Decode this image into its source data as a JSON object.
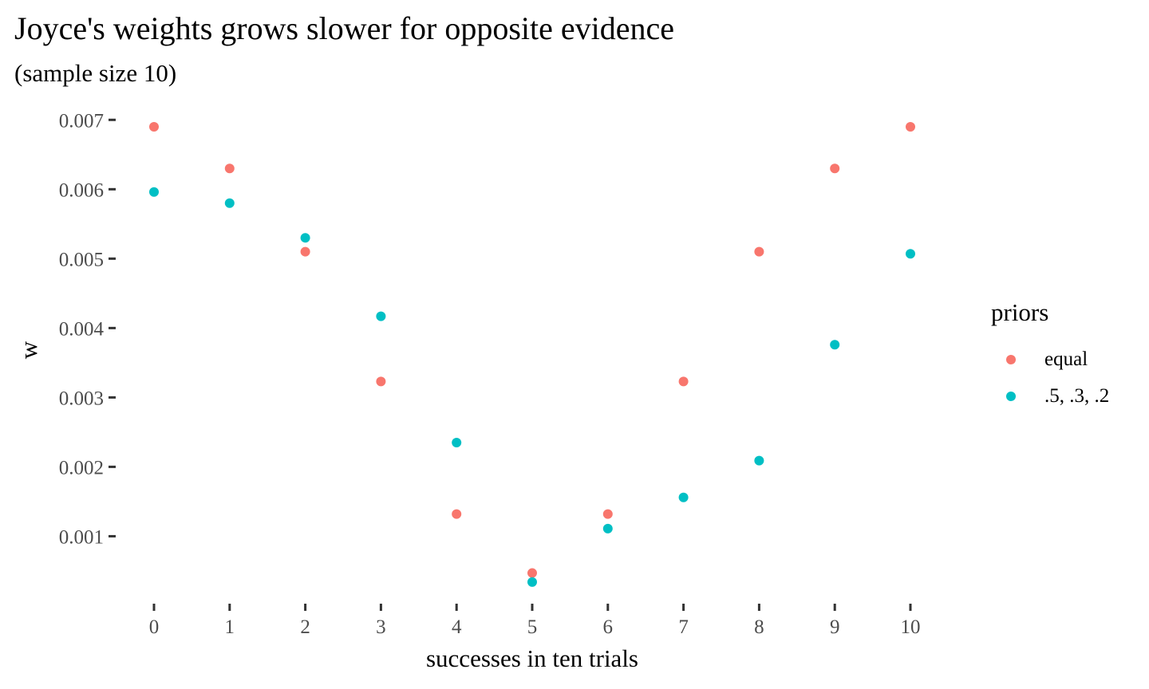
{
  "chart_data": {
    "type": "scatter",
    "title": "Joyce's weights grows slower for opposite evidence",
    "subtitle": "(sample size 10)",
    "xlabel": "successes in ten trials",
    "ylabel": "w",
    "x": [
      0,
      1,
      2,
      3,
      4,
      5,
      6,
      7,
      8,
      9,
      10
    ],
    "x_ticks": [
      0,
      1,
      2,
      3,
      4,
      5,
      6,
      7,
      8,
      9,
      10
    ],
    "y_ticks": [
      0.001,
      0.002,
      0.003,
      0.004,
      0.005,
      0.006,
      0.007
    ],
    "y_tick_labels": [
      "0.001",
      "0.002",
      "0.003",
      "0.004",
      "0.005",
      "0.006",
      "0.007"
    ],
    "xlim": [
      0,
      10
    ],
    "ylim": [
      0.00035,
      0.0069
    ],
    "grid": false,
    "legend_title": "priors",
    "legend_position": "right",
    "series": [
      {
        "name": "equal",
        "color": "#F8766D",
        "values": [
          0.0069,
          0.0063,
          0.0051,
          0.00323,
          0.00132,
          0.00047,
          0.00132,
          0.00323,
          0.0051,
          0.0063,
          0.0069
        ]
      },
      {
        "name": ".5, .3, .2",
        "color": "#00BFC4",
        "values": [
          0.00596,
          0.0058,
          0.0053,
          0.00417,
          0.00235,
          0.00034,
          0.00111,
          0.00156,
          0.00209,
          0.00376,
          0.00507
        ]
      }
    ]
  }
}
